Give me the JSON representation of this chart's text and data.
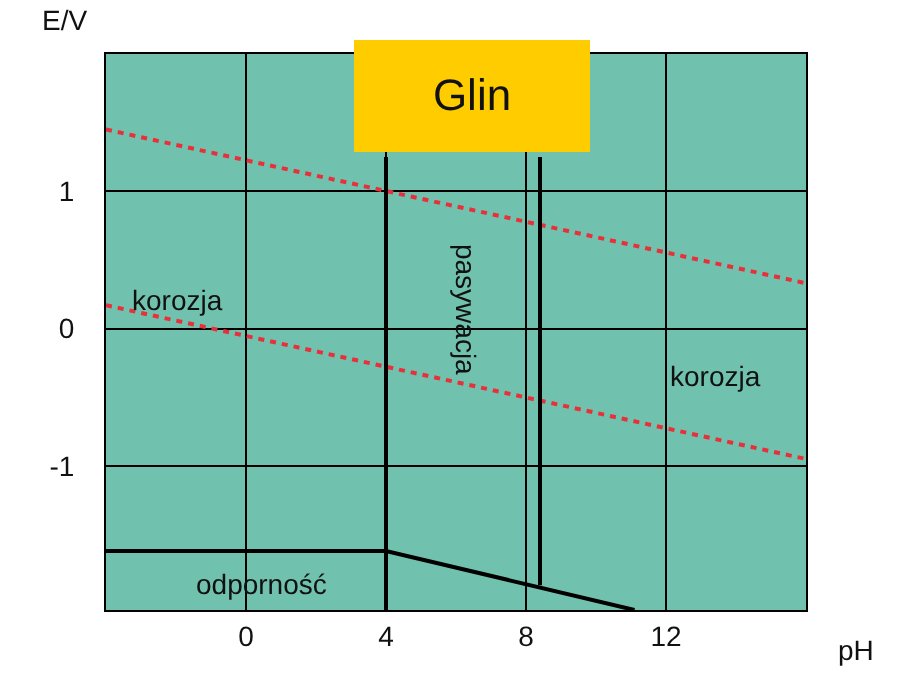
{
  "chart_data": {
    "type": "line",
    "title": "Glin",
    "xlabel": "pH",
    "ylabel": "E/V",
    "xlim": [
      -4,
      16
    ],
    "ylim": [
      -2.05,
      2
    ],
    "xticks": [
      0,
      4,
      8,
      12
    ],
    "yticks": [
      -1,
      0,
      1
    ],
    "grid": true,
    "marker": "none",
    "series": [
      {
        "color": "#e8303a",
        "line_style": "dotted",
        "x": [
          -4,
          16
        ],
        "values": [
          1.45,
          0.33
        ]
      },
      {
        "color": "#e8303a",
        "line_style": "dotted",
        "x": [
          -4,
          16
        ],
        "values": [
          0.17,
          -0.95
        ]
      },
      {
        "color": "#000000",
        "line_style": "solid",
        "x": [
          -4,
          4,
          11.1
        ],
        "values": [
          -1.62,
          -1.62,
          -2.05
        ]
      },
      {
        "color": "#000000",
        "line_style": "solid",
        "x": [
          4,
          4
        ],
        "values": [
          1.25,
          -2.05
        ]
      },
      {
        "color": "#000000",
        "line_style": "solid",
        "x": [
          8.4,
          8.4
        ],
        "values": [
          1.25,
          -1.87
        ]
      }
    ],
    "annotations": [
      "korozja",
      "pasywacja",
      "korozja",
      "odporność"
    ]
  }
}
